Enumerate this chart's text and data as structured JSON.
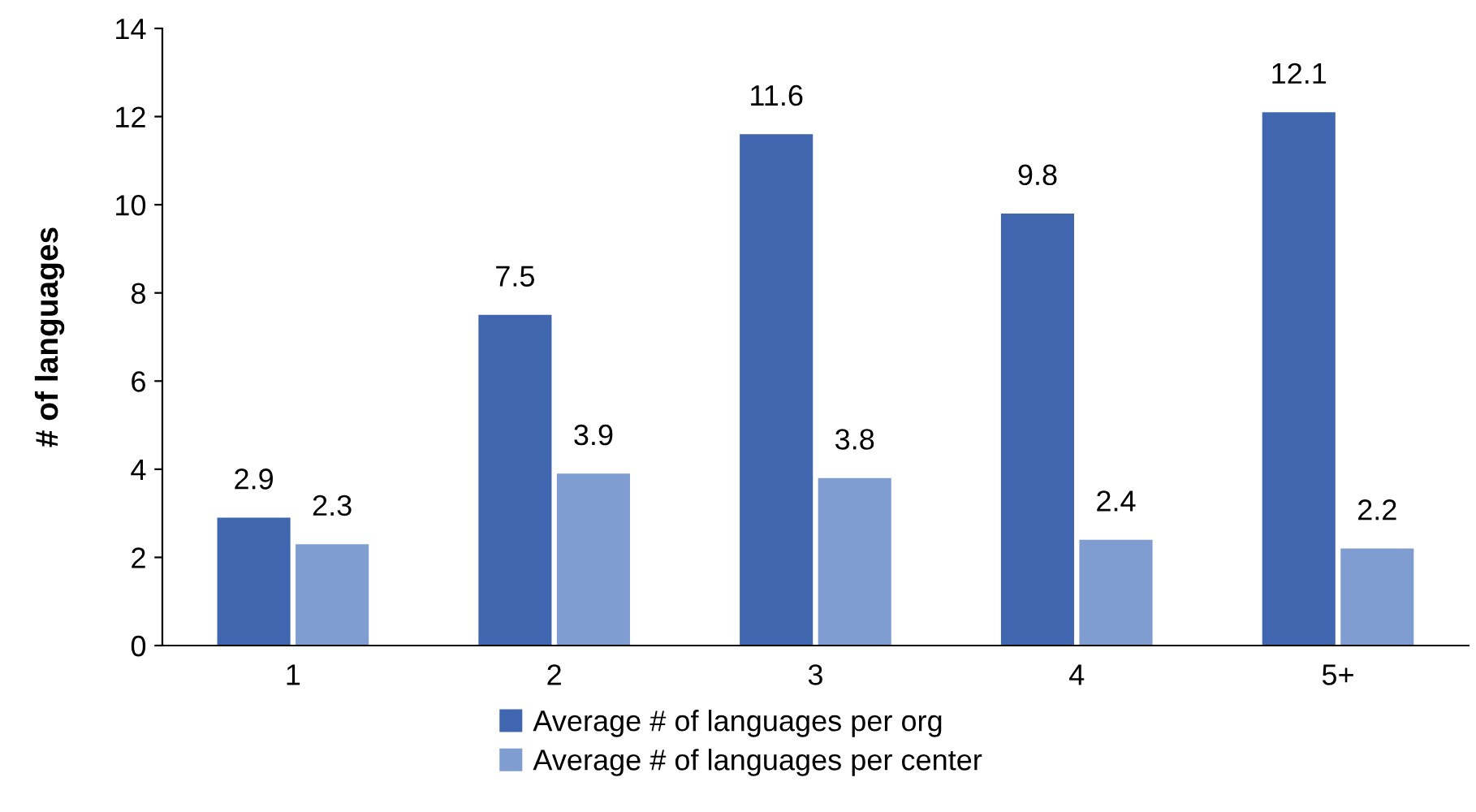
{
  "chart_data": {
    "type": "bar",
    "ylabel": "# of languages",
    "categories": [
      "1",
      "2",
      "3",
      "4",
      "5+"
    ],
    "series": [
      {
        "name": "Average # of languages per org",
        "color": "#4166b0",
        "values": [
          2.9,
          7.5,
          11.6,
          9.8,
          12.1
        ]
      },
      {
        "name": "Average # of languages per center",
        "color": "#7f9dd0",
        "values": [
          2.3,
          3.9,
          3.8,
          2.4,
          2.2
        ]
      }
    ],
    "ylim": [
      0,
      14
    ],
    "yticks": [
      0,
      2,
      4,
      6,
      8,
      10,
      12,
      14
    ],
    "grid": false,
    "legend": "bottom",
    "data_labels": true
  }
}
